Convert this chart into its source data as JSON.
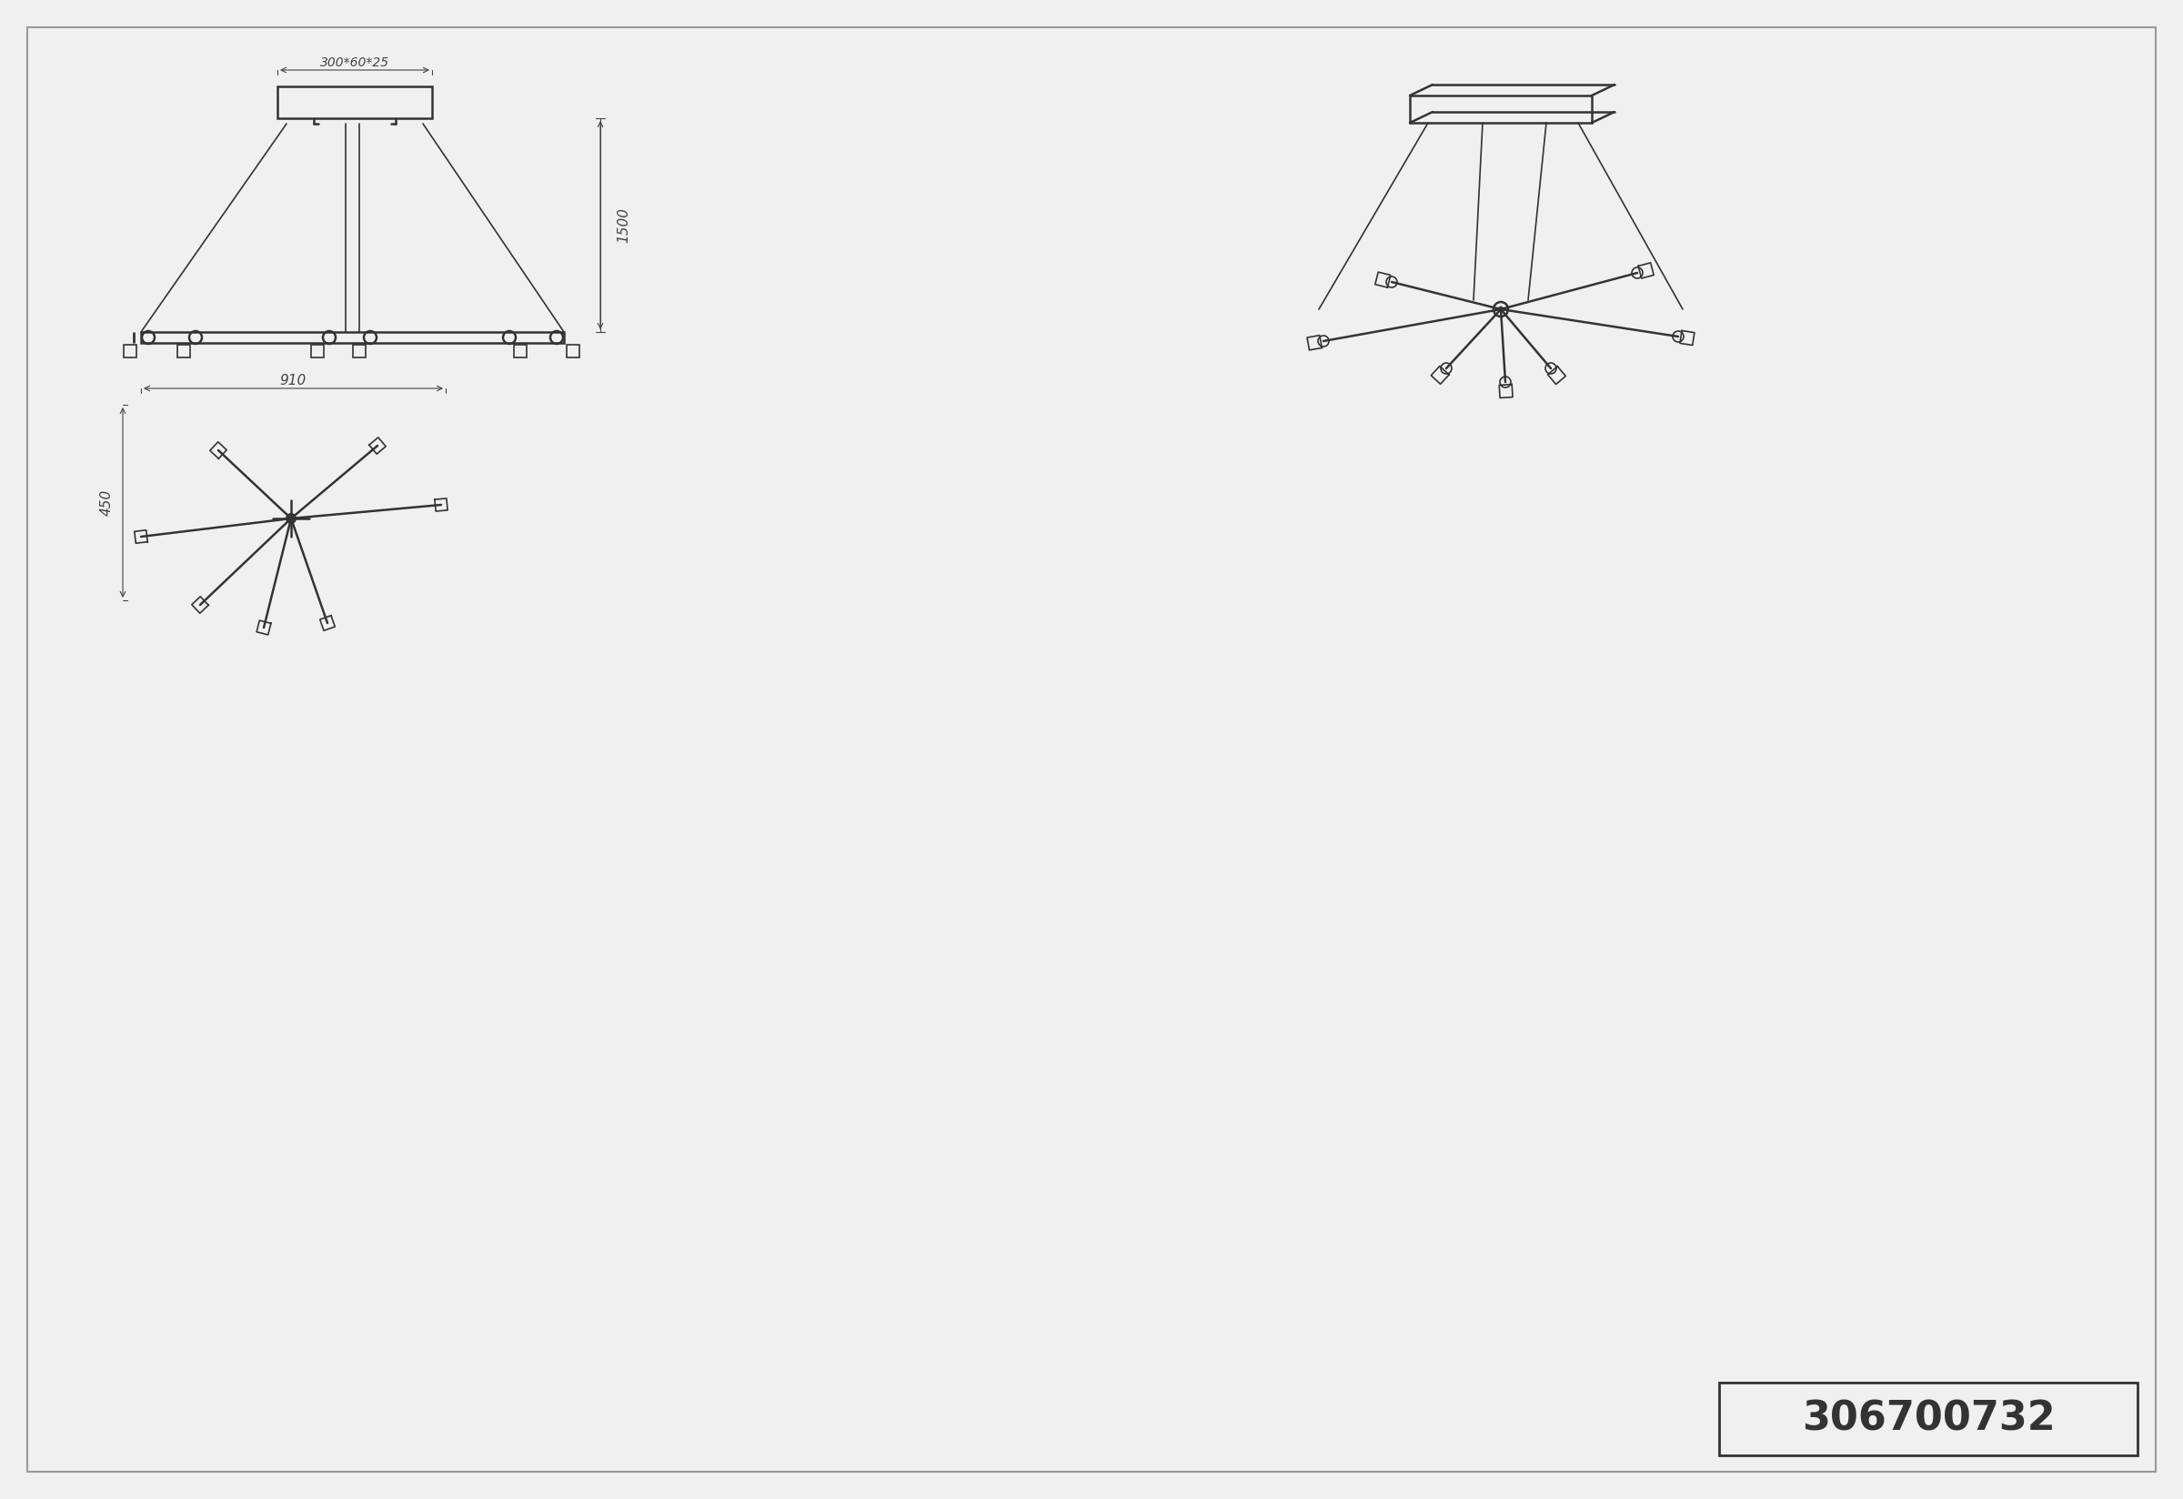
{
  "bg_color": "#f0f0f0",
  "line_color": "#333333",
  "dim_color": "#444444",
  "border_color": "#999999",
  "title": "",
  "product_code": "306700732",
  "dim_300_label": "300*60*25",
  "dim_1500_label": "1500",
  "dim_910_label": "910",
  "dim_450_label": "450"
}
